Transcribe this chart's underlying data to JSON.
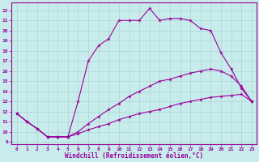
{
  "xlabel": "Windchill (Refroidissement éolien,°C)",
  "bg_color": "#c8ecec",
  "grid_color": "#b0d8d8",
  "line_color": "#990099",
  "xlim": [
    -0.5,
    23.5
  ],
  "ylim": [
    8.8,
    22.8
  ],
  "xticks": [
    0,
    1,
    2,
    3,
    4,
    5,
    6,
    7,
    8,
    9,
    10,
    11,
    12,
    13,
    14,
    15,
    16,
    17,
    18,
    19,
    20,
    21,
    22,
    23
  ],
  "yticks": [
    9,
    10,
    11,
    12,
    13,
    14,
    15,
    16,
    17,
    18,
    19,
    20,
    21,
    22
  ],
  "line1_x": [
    0,
    1,
    2,
    3,
    4,
    5,
    6,
    7,
    8,
    9,
    10,
    11,
    12,
    13,
    14,
    15,
    16,
    17,
    18,
    19,
    20,
    21,
    22,
    23
  ],
  "line1_y": [
    11.8,
    11.0,
    10.3,
    9.5,
    9.5,
    9.5,
    9.8,
    10.2,
    10.5,
    10.8,
    11.2,
    11.5,
    11.8,
    12.0,
    12.2,
    12.5,
    12.8,
    13.0,
    13.2,
    13.4,
    13.5,
    13.6,
    13.7,
    13.0
  ],
  "line2_x": [
    0,
    1,
    2,
    3,
    4,
    5,
    6,
    7,
    8,
    9,
    10,
    11,
    12,
    13,
    14,
    15,
    16,
    17,
    18,
    19,
    20,
    21,
    22,
    23
  ],
  "line2_y": [
    11.8,
    11.0,
    10.3,
    9.5,
    9.5,
    9.5,
    10.0,
    10.8,
    11.5,
    12.2,
    12.8,
    13.5,
    14.0,
    14.5,
    15.0,
    15.2,
    15.5,
    15.8,
    16.0,
    16.2,
    16.0,
    15.5,
    14.5,
    13.0
  ],
  "line3_x": [
    0,
    1,
    2,
    3,
    4,
    5,
    6,
    7,
    8,
    9,
    10,
    11,
    12,
    13,
    14,
    15,
    16,
    17,
    18,
    19,
    20,
    21,
    22,
    23
  ],
  "line3_y": [
    11.8,
    11.0,
    10.3,
    9.5,
    9.5,
    9.5,
    13.0,
    17.0,
    18.5,
    19.2,
    21.0,
    21.0,
    21.0,
    22.2,
    21.0,
    21.2,
    21.2,
    21.0,
    20.2,
    20.0,
    17.8,
    16.2,
    14.3,
    13.0
  ]
}
